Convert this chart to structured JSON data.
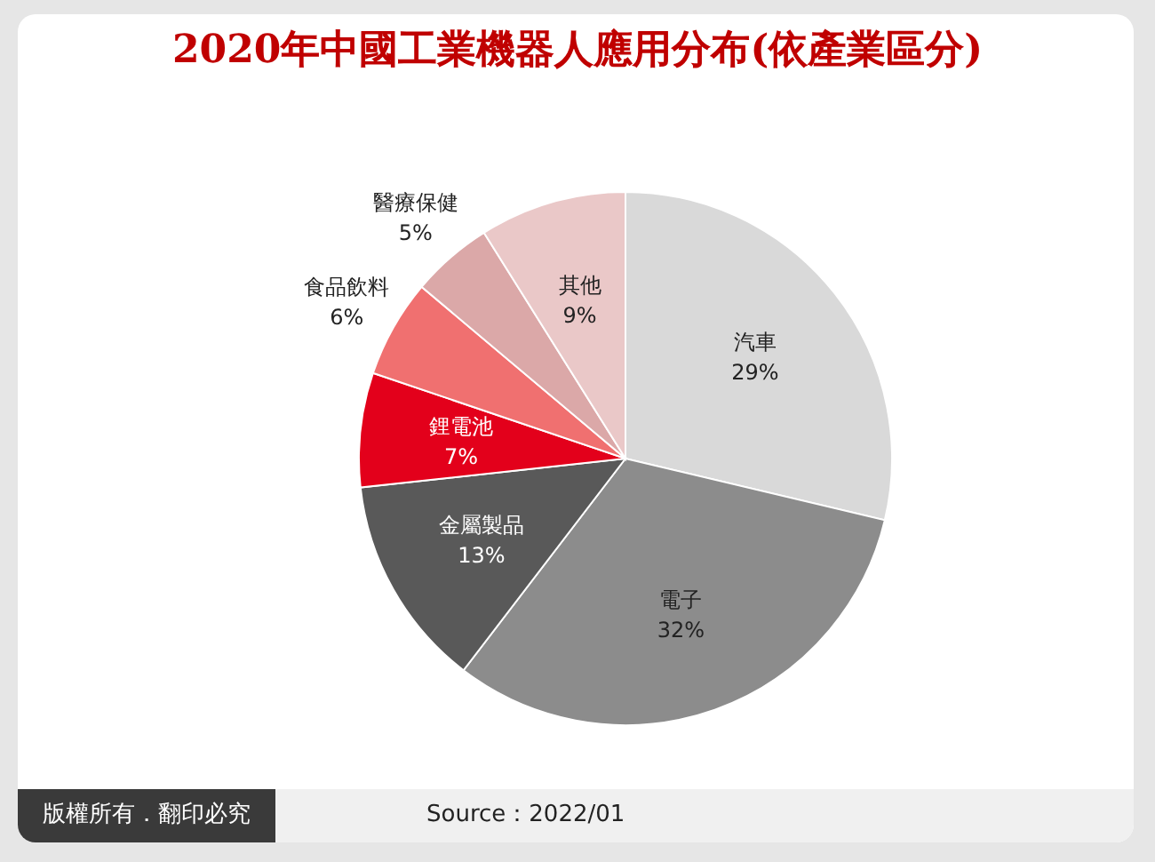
{
  "chart_data": {
    "type": "pie",
    "title": "2020年中國工業機器人應用分布(依產業區分)",
    "categories": [
      "汽車",
      "電子",
      "金屬製品",
      "鋰電池",
      "食品飲料",
      "醫療保健",
      "其他"
    ],
    "values": [
      29,
      32,
      13,
      7,
      6,
      5,
      9
    ],
    "value_labels": [
      "29%",
      "32%",
      "13%",
      "7%",
      "6%",
      "5%",
      "9%"
    ],
    "colors": [
      "#d9d9d9",
      "#8c8c8c",
      "#595959",
      "#e3001b",
      "#f07070",
      "#dba8a8",
      "#eac8c8"
    ],
    "annotations": [
      "版權所有．翻印必究",
      "Source：2022/01"
    ]
  }
}
